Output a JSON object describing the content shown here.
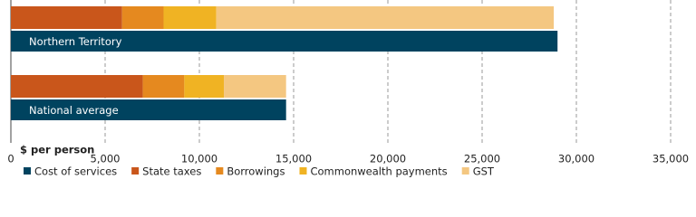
{
  "chart_data": {
    "type": "bar",
    "orientation": "horizontal",
    "x_label": "$ per person",
    "categories": [
      "Northern Territory",
      "National average"
    ],
    "series": [
      {
        "name": "Cost of services",
        "color": "#00435f",
        "values": [
          29000,
          14600
        ]
      },
      {
        "name": "State taxes",
        "color": "#c9561b",
        "values": [
          5900,
          7000
        ]
      },
      {
        "name": "Borrowings",
        "color": "#e5891f",
        "values": [
          2200,
          2200
        ]
      },
      {
        "name": "Commonwealth payments",
        "color": "#f0b323",
        "values": [
          2800,
          2100
        ]
      },
      {
        "name": "GST",
        "color": "#f4c781",
        "values": [
          17900,
          3300
        ]
      }
    ],
    "xlim": [
      0,
      35000
    ],
    "xticks": [
      0,
      {
        "value": 5000,
        "label": "5,000"
      },
      {
        "value": 10000,
        "label": "10,000"
      },
      {
        "value": 15000,
        "label": "15,000"
      },
      {
        "value": 20000,
        "label": "20,000"
      },
      {
        "value": 25000,
        "label": "25,000"
      },
      {
        "value": 30000,
        "label": "30,000"
      },
      {
        "value": 35000,
        "label": "35,000"
      }
    ],
    "grid": true
  }
}
